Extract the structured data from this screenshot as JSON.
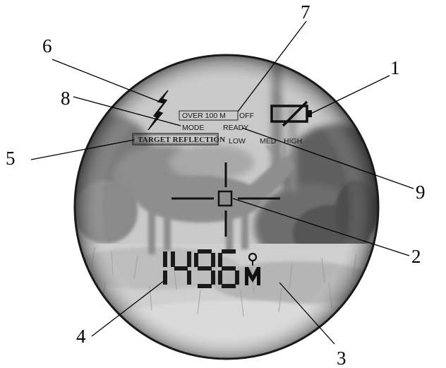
{
  "hud": {
    "over_100m": "OVER 100 M",
    "off": "OFF",
    "mode": "MODE",
    "ready": "READY",
    "target_reflection": "TARGET REFLECTION",
    "low": "LOW",
    "med": "MED",
    "high": "HIGH",
    "distance_readout": "1496"
  },
  "callouts": {
    "c1": "1",
    "c2": "2",
    "c3": "3",
    "c4": "4",
    "c5": "5",
    "c6": "6",
    "c7": "7",
    "c8": "8",
    "c9": "9"
  }
}
